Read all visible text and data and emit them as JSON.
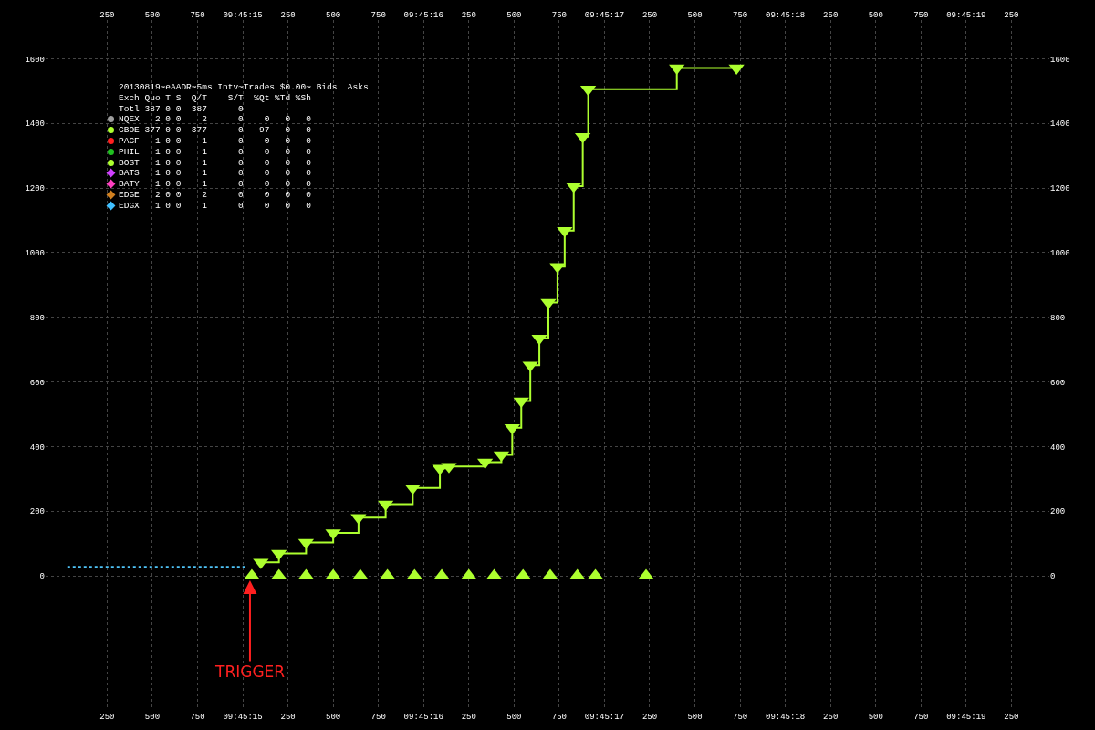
{
  "chart_data": {
    "type": "scatter",
    "title": "20130819~eAADR~5ms Intv~Trades $0.00~ Bids  Asks",
    "series": [
      {
        "type": "line",
        "color": "#4fc3f7",
        "line_style": "dotted",
        "marker": "none",
        "x": [
          "2013-08-19T09:45:14.030",
          "2013-08-19T09:45:15.020"
        ],
        "values": [
          28,
          28
        ]
      },
      {
        "type": "step",
        "color": "#adff2f",
        "marker": "triangle-down",
        "x": [
          "2013-08-19T09:45:15.100",
          "2013-08-19T09:45:15.200",
          "2013-08-19T09:45:15.350",
          "2013-08-19T09:45:15.500",
          "2013-08-19T09:45:15.640",
          "2013-08-19T09:45:15.790",
          "2013-08-19T09:45:15.940",
          "2013-08-19T09:45:16.090",
          "2013-08-19T09:45:16.140",
          "2013-08-19T09:45:16.340",
          "2013-08-19T09:45:16.430",
          "2013-08-19T09:45:16.490",
          "2013-08-19T09:45:16.540",
          "2013-08-19T09:45:16.590",
          "2013-08-19T09:45:16.640",
          "2013-08-19T09:45:16.690",
          "2013-08-19T09:45:16.740",
          "2013-08-19T09:45:16.780",
          "2013-08-19T09:45:16.830",
          "2013-08-19T09:45:16.880",
          "2013-08-19T09:45:16.910",
          "2013-08-19T09:45:17.400",
          "2013-08-19T09:45:17.730"
        ],
        "values": [
          42,
          69,
          103,
          133,
          180,
          222,
          272,
          333,
          338,
          352,
          374,
          458,
          541,
          652,
          735,
          846,
          957,
          1068,
          1206,
          1359,
          1506,
          1572,
          1572
        ]
      },
      {
        "marker": "triangle-up",
        "color": "#adff2f",
        "x": [
          "2013-08-19T09:45:15.050",
          "2013-08-19T09:45:15.200",
          "2013-08-19T09:45:15.350",
          "2013-08-19T09:45:15.500",
          "2013-08-19T09:45:15.650",
          "2013-08-19T09:45:15.800",
          "2013-08-19T09:45:15.950",
          "2013-08-19T09:45:16.100",
          "2013-08-19T09:45:16.250",
          "2013-08-19T09:45:16.390",
          "2013-08-19T09:45:16.550",
          "2013-08-19T09:45:16.700",
          "2013-08-19T09:45:16.850",
          "2013-08-19T09:45:16.950",
          "2013-08-19T09:45:17.230"
        ],
        "values": [
          0,
          0,
          0,
          0,
          0,
          0,
          0,
          0,
          0,
          0,
          0,
          0,
          0,
          0,
          0
        ]
      }
    ],
    "xlim": [
      "2013-08-19T09:45:13.910",
      "2013-08-19T09:45:19.460"
    ],
    "ylim": [
      -415,
      1720
    ],
    "xticks": [
      {
        "value": "2013-08-19T09:45:14.250",
        "label": "250"
      },
      {
        "value": "2013-08-19T09:45:14.500",
        "label": "500"
      },
      {
        "value": "2013-08-19T09:45:14.750",
        "label": "750"
      },
      {
        "value": "2013-08-19T09:45:15",
        "label": "09:45:15"
      },
      {
        "value": "2013-08-19T09:45:15.250",
        "label": "250"
      },
      {
        "value": "2013-08-19T09:45:15.500",
        "label": "500"
      },
      {
        "value": "2013-08-19T09:45:15.750",
        "label": "750"
      },
      {
        "value": "2013-08-19T09:45:16",
        "label": "09:45:16"
      },
      {
        "value": "2013-08-19T09:45:16.250",
        "label": "250"
      },
      {
        "value": "2013-08-19T09:45:16.500",
        "label": "500"
      },
      {
        "value": "2013-08-19T09:45:16.750",
        "label": "750"
      },
      {
        "value": "2013-08-19T09:45:17",
        "label": "09:45:17"
      },
      {
        "value": "2013-08-19T09:45:17.250",
        "label": "250"
      },
      {
        "value": "2013-08-19T09:45:17.500",
        "label": "500"
      },
      {
        "value": "2013-08-19T09:45:17.750",
        "label": "750"
      },
      {
        "value": "2013-08-19T09:45:18",
        "label": "09:45:18"
      },
      {
        "value": "2013-08-19T09:45:18.250",
        "label": "250"
      },
      {
        "value": "2013-08-19T09:45:18.500",
        "label": "500"
      },
      {
        "value": "2013-08-19T09:45:18.750",
        "label": "750"
      },
      {
        "value": "2013-08-19T09:45:19",
        "label": "09:45:19"
      },
      {
        "value": "2013-08-19T09:45:19.250",
        "label": "250"
      }
    ],
    "x2ticks": [
      {
        "value": "2013-08-19T09:45:14.250",
        "label": "250"
      },
      {
        "value": "2013-08-19T09:45:14.500",
        "label": "500"
      },
      {
        "value": "2013-08-19T09:45:14.750",
        "label": "750"
      },
      {
        "value": "2013-08-19T09:45:15",
        "label": "09:45:15"
      },
      {
        "value": "2013-08-19T09:45:15.250",
        "label": "250"
      },
      {
        "value": "2013-08-19T09:45:15.500",
        "label": "500"
      },
      {
        "value": "2013-08-19T09:45:15.750",
        "label": "750"
      },
      {
        "value": "2013-08-19T09:45:16",
        "label": "09:45:16"
      },
      {
        "value": "2013-08-19T09:45:16.250",
        "label": "250"
      },
      {
        "value": "2013-08-19T09:45:16.500",
        "label": "500"
      },
      {
        "value": "2013-08-19T09:45:16.750",
        "label": "750"
      },
      {
        "value": "2013-08-19T09:45:17",
        "label": "09:45:17"
      },
      {
        "value": "2013-08-19T09:45:17.250",
        "label": "250"
      },
      {
        "value": "2013-08-19T09:45:17.500",
        "label": "500"
      },
      {
        "value": "2013-08-19T09:45:17.750",
        "label": "750"
      },
      {
        "value": "2013-08-19T09:45:18",
        "label": "09:45:18"
      },
      {
        "value": "2013-08-19T09:45:18.250",
        "label": "250"
      },
      {
        "value": "2013-08-19T09:45:18.500",
        "label": "500"
      },
      {
        "value": "2013-08-19T09:45:18.750",
        "label": "750"
      },
      {
        "value": "2013-08-19T09:45:19",
        "label": "09:45:19"
      },
      {
        "value": "2013-08-19T09:45:19.250",
        "label": "250"
      }
    ],
    "x2lim": [
      "2013-08-19T09:45:13.910",
      "2013-08-19T09:45:19.460"
    ],
    "y2lim": [
      -415,
      1720
    ],
    "yticks": [
      0,
      200,
      400,
      600,
      800,
      1000,
      1200,
      1400,
      1600
    ],
    "y2ticks": [
      0,
      200,
      400,
      600,
      800,
      1000,
      1200,
      1400,
      1600
    ],
    "grid": true,
    "annotations": [
      "Exch Quo T S  Q/T    S/T  %Qt %Td %Sh",
      "Totl 387 0 0  387      0",
      "NQEX   2 0 0    2      0    0   0   0",
      "CBOE 377 0 0  377      0   97   0   0",
      "PACF   1 0 0    1      0    0   0   0",
      "PHIL   1 0 0    1      0    0   0   0",
      "BOST   1 0 0    1      0    0   0   0",
      "BATS   1 0 0    1      0    0   0   0",
      "BATY   1 0 0    1      0    0   0   0",
      "EDGE   2 0 0    2      0    0   0   0",
      "EDGX   1 0 0    1      0    0   0   0",
      {
        "text": "TRIGGER",
        "x": "2013-08-19T09:45:15.040",
        "y": -14
      }
    ]
  }
}
